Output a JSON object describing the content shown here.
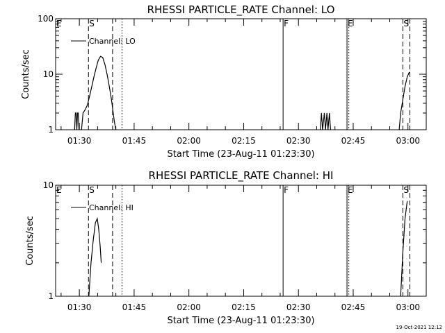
{
  "footer": {
    "timestamp": "19-Oct-2021 12:12"
  },
  "chart_data": [
    {
      "type": "line",
      "title": "RHESSI PARTICLE_RATE Channel: LO",
      "xlabel": "Start Time (23-Aug-11 01:23:30)",
      "ylabel": "Counts/sec",
      "yscale": "log",
      "ylim": [
        1,
        100
      ],
      "xlim_minutes": [
        83.5,
        185
      ],
      "y_ticks": [
        {
          "value": 1,
          "label": "1"
        },
        {
          "value": 10,
          "label": "10"
        },
        {
          "value": 100,
          "label": "100"
        }
      ],
      "x_ticks": [
        {
          "value": 90,
          "label": "01:30"
        },
        {
          "value": 105,
          "label": "01:45"
        },
        {
          "value": 120,
          "label": "02:00"
        },
        {
          "value": 135,
          "label": "02:15"
        },
        {
          "value": 150,
          "label": "02:30"
        },
        {
          "value": 165,
          "label": "02:45"
        },
        {
          "value": 180,
          "label": "03:00"
        }
      ],
      "legend": {
        "label": "Channel: LO",
        "position": "top-left"
      },
      "markers": [
        {
          "t": 83.5,
          "style": "none",
          "label": "E"
        },
        {
          "t": 92.5,
          "style": "dashed",
          "label": "S"
        },
        {
          "t": 99.1,
          "style": "dashed",
          "label": ""
        },
        {
          "t": 101.7,
          "style": "dotted",
          "label": ""
        },
        {
          "t": 145.8,
          "style": "solid",
          "label": "F"
        },
        {
          "t": 163.3,
          "style": "solid",
          "label": "E"
        },
        {
          "t": 163.8,
          "style": "dotted",
          "label": ""
        },
        {
          "t": 178.6,
          "style": "dashed",
          "label": "S"
        },
        {
          "t": 180.5,
          "style": "dashed",
          "label": ""
        }
      ],
      "series": [
        {
          "segments": [
            [
              [
                88.7,
                1
              ],
              [
                88.9,
                2
              ],
              [
                89.1,
                2
              ],
              [
                89.3,
                1
              ],
              [
                89.5,
                2
              ],
              [
                89.7,
                2
              ],
              [
                89.9,
                1
              ]
            ],
            [
              [
                90.6,
                1
              ],
              [
                91.0,
                2
              ],
              [
                91.6,
                2.3
              ],
              [
                92.2,
                2.8
              ],
              [
                92.8,
                4
              ],
              [
                93.4,
                6
              ],
              [
                94.0,
                9
              ],
              [
                94.6,
                13
              ],
              [
                95.2,
                18
              ],
              [
                95.8,
                21
              ],
              [
                96.4,
                20
              ],
              [
                97.0,
                15
              ],
              [
                97.6,
                10
              ],
              [
                98.2,
                6
              ],
              [
                98.8,
                3.5
              ],
              [
                99.2,
                2.2
              ],
              [
                99.6,
                1.4
              ],
              [
                100.0,
                1
              ]
            ],
            [
              [
                156.0,
                1
              ],
              [
                156.3,
                2
              ],
              [
                156.6,
                1
              ],
              [
                157.1,
                2
              ],
              [
                157.4,
                1
              ],
              [
                157.8,
                2
              ],
              [
                158.1,
                1
              ],
              [
                158.5,
                2
              ],
              [
                158.8,
                1
              ]
            ],
            [
              [
                177.6,
                1
              ],
              [
                178.0,
                2
              ],
              [
                178.6,
                3.5
              ],
              [
                179.2,
                6
              ],
              [
                179.8,
                9
              ],
              [
                180.4,
                11
              ]
            ]
          ]
        }
      ]
    },
    {
      "type": "line",
      "title": "RHESSI PARTICLE_RATE Channel: HI",
      "xlabel": "Start Time (23-Aug-11 01:23:30)",
      "ylabel": "Counts/sec",
      "yscale": "log",
      "ylim": [
        1,
        10
      ],
      "xlim_minutes": [
        83.5,
        185
      ],
      "y_ticks": [
        {
          "value": 1,
          "label": "1"
        },
        {
          "value": 10,
          "label": "10"
        }
      ],
      "x_ticks": [
        {
          "value": 90,
          "label": "01:30"
        },
        {
          "value": 105,
          "label": "01:45"
        },
        {
          "value": 120,
          "label": "02:00"
        },
        {
          "value": 135,
          "label": "02:15"
        },
        {
          "value": 150,
          "label": "02:30"
        },
        {
          "value": 165,
          "label": "02:45"
        },
        {
          "value": 180,
          "label": "03:00"
        }
      ],
      "legend": {
        "label": "Channel: HI",
        "position": "top-left"
      },
      "markers": [
        {
          "t": 83.5,
          "style": "none",
          "label": "E"
        },
        {
          "t": 92.5,
          "style": "dashed",
          "label": "S"
        },
        {
          "t": 99.1,
          "style": "dashed",
          "label": ""
        },
        {
          "t": 101.7,
          "style": "dotted",
          "label": ""
        },
        {
          "t": 145.8,
          "style": "solid",
          "label": "F"
        },
        {
          "t": 163.3,
          "style": "solid",
          "label": "E"
        },
        {
          "t": 163.8,
          "style": "dotted",
          "label": ""
        },
        {
          "t": 178.6,
          "style": "dashed",
          "label": "S"
        },
        {
          "t": 180.5,
          "style": "dashed",
          "label": ""
        }
      ],
      "series": [
        {
          "segments": [
            [
              [
                92.6,
                1
              ],
              [
                93.2,
                2
              ],
              [
                93.8,
                3.2
              ],
              [
                94.4,
                4.6
              ],
              [
                94.9,
                5
              ],
              [
                95.3,
                4
              ],
              [
                95.7,
                2.8
              ],
              [
                96.0,
                2
              ]
            ],
            [
              [
                178.0,
                1
              ],
              [
                178.6,
                2.5
              ],
              [
                179.2,
                5
              ],
              [
                179.8,
                7.2
              ]
            ]
          ]
        }
      ]
    }
  ]
}
